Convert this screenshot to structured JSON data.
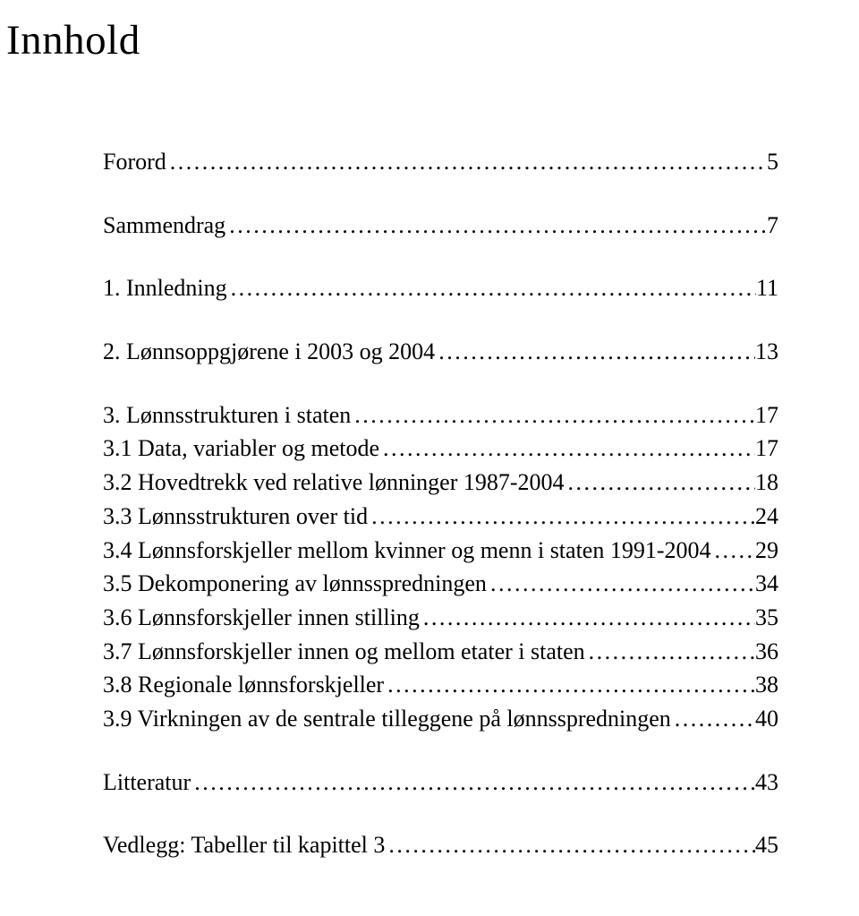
{
  "title": "Innhold",
  "entries": [
    {
      "label": "Forord",
      "page": "5",
      "gap": "large"
    },
    {
      "label": "Sammendrag",
      "page": "7",
      "gap": "large"
    },
    {
      "label": "1. Innledning",
      "page": "11",
      "gap": "large"
    },
    {
      "label": "2. Lønnsoppgjørene i 2003 og 2004",
      "page": "13",
      "gap": "large"
    },
    {
      "label": "3. Lønnsstrukturen i staten",
      "page": "17",
      "gap": "small"
    },
    {
      "label": "3.1 Data, variabler og metode",
      "page": "17",
      "gap": "small"
    },
    {
      "label": "3.2 Hovedtrekk ved relative lønninger 1987-2004",
      "page": "18",
      "gap": "small"
    },
    {
      "label": "3.3 Lønnsstrukturen over tid",
      "page": "24",
      "gap": "small"
    },
    {
      "label": "3.4 Lønnsforskjeller mellom kvinner og menn i staten 1991-2004",
      "page": "29",
      "gap": "small"
    },
    {
      "label": "3.5 Dekomponering av lønnsspredningen",
      "page": "34",
      "gap": "small"
    },
    {
      "label": "3.6 Lønnsforskjeller innen stilling",
      "page": "35",
      "gap": "small"
    },
    {
      "label": "3.7 Lønnsforskjeller innen og mellom etater i staten",
      "page": "36",
      "gap": "small"
    },
    {
      "label": "3.8 Regionale lønnsforskjeller",
      "page": "38",
      "gap": "small"
    },
    {
      "label": "3.9 Virkningen av de sentrale tilleggene på lønnsspredningen",
      "page": "40",
      "gap": "large"
    },
    {
      "label": "Litteratur",
      "page": "43",
      "gap": "large"
    },
    {
      "label": "Vedlegg: Tabeller til kapittel 3",
      "page": "45",
      "gap": "small"
    }
  ]
}
